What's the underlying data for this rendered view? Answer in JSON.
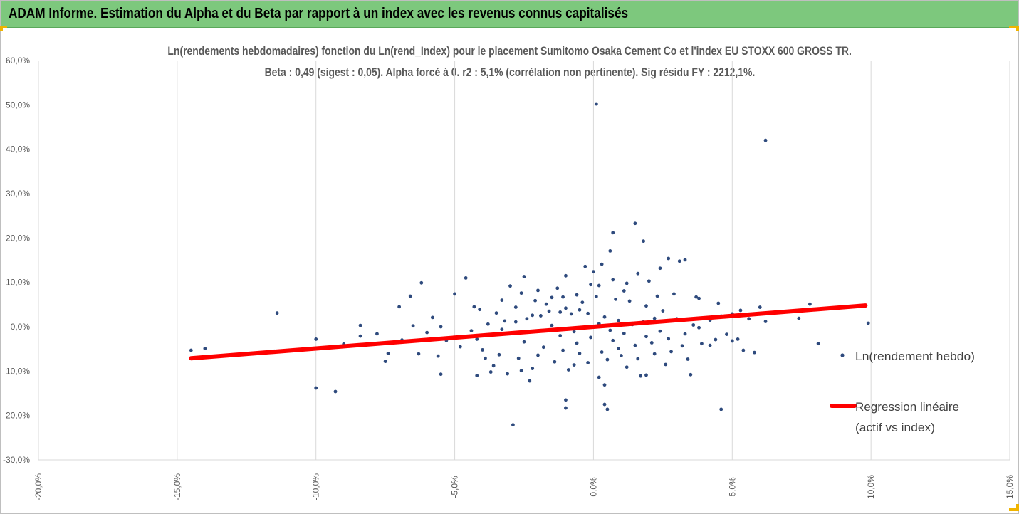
{
  "header": {
    "title": "ADAM Informe. Estimation du Alpha et du Beta par rapport à un index avec les revenus connus capitalisés"
  },
  "chart_data": {
    "type": "scatter",
    "title_line1": "Ln(rendements hebdomadaires) fonction du Ln(rend_Index) pour le placement Sumitomo Osaka Cement Co  et l'index EU STOXX 600 GROSS TR.",
    "title_line2": "Beta : 0,49 (sigest : 0,05). Alpha forcé à 0. r2 : 5,1% (corrélation non pertinente). Sig résidu FY : 2212,1%.",
    "xlim": [
      -20,
      15
    ],
    "ylim": [
      -30,
      60
    ],
    "x_ticks": [
      "-20,0%",
      "-15,0%",
      "-10,0%",
      "-5,0%",
      "0,0%",
      "5,0%",
      "10,0%",
      "15,0%"
    ],
    "y_ticks": [
      "60,0%",
      "50,0%",
      "40,0%",
      "30,0%",
      "20,0%",
      "10,0%",
      "0,0%",
      "-10,0%",
      "-20,0%",
      "-30,0%"
    ],
    "grid": "vertical",
    "legend_placement": "right",
    "colors": {
      "points": "#2e4a7d",
      "regression": "#ff0000",
      "grid": "#d9d9d9",
      "header": "#7dc87d"
    },
    "series": [
      {
        "name": "Ln(rendement hebdo)",
        "type": "scatter",
        "points": [
          [
            0.1,
            50.2
          ],
          [
            6.2,
            42.0
          ],
          [
            1.5,
            23.3
          ],
          [
            0.7,
            21.2
          ],
          [
            1.8,
            19.3
          ],
          [
            0.6,
            17.1
          ],
          [
            2.7,
            15.4
          ],
          [
            3.3,
            15.1
          ],
          [
            3.1,
            14.8
          ],
          [
            0.3,
            14.1
          ],
          [
            -0.3,
            13.6
          ],
          [
            2.4,
            13.2
          ],
          [
            -1.0,
            11.5
          ],
          [
            -2.5,
            11.3
          ],
          [
            -4.6,
            11.0
          ],
          [
            -6.2,
            9.9
          ],
          [
            -3.0,
            9.2
          ],
          [
            -5.0,
            7.4
          ],
          [
            -6.6,
            6.9
          ],
          [
            -4.3,
            4.5
          ],
          [
            -7.0,
            4.5
          ],
          [
            -6.5,
            0.2
          ],
          [
            -8.4,
            0.3
          ],
          [
            -11.4,
            3.1
          ],
          [
            -5.5,
            0.0
          ],
          [
            -6.9,
            -3.0
          ],
          [
            -7.4,
            -6.0
          ],
          [
            -7.5,
            -7.8
          ],
          [
            -6.3,
            -6.1
          ],
          [
            -5.6,
            -6.6
          ],
          [
            -5.5,
            -10.7
          ],
          [
            -4.2,
            -11.0
          ],
          [
            -3.7,
            -10.2
          ],
          [
            -3.1,
            -10.6
          ],
          [
            -2.6,
            -9.9
          ],
          [
            -2.3,
            -12.2
          ],
          [
            -3.9,
            -7.1
          ],
          [
            -14.5,
            -5.3
          ],
          [
            -14.0,
            -4.9
          ],
          [
            -11.5,
            -5.5
          ],
          [
            -10.0,
            -13.8
          ],
          [
            -9.3,
            -14.6
          ],
          [
            -10.0,
            -2.8
          ],
          [
            -8.4,
            -2.1
          ],
          [
            -2.9,
            -22.1
          ],
          [
            -1.0,
            -16.5
          ],
          [
            -1.0,
            -18.3
          ],
          [
            0.4,
            -17.5
          ],
          [
            0.5,
            -18.6
          ],
          [
            0.2,
            -11.4
          ],
          [
            0.4,
            -13.1
          ],
          [
            1.7,
            -11.1
          ],
          [
            1.9,
            -10.9
          ],
          [
            3.5,
            -10.8
          ],
          [
            4.6,
            -18.6
          ],
          [
            4.2,
            -4.2
          ],
          [
            5.0,
            -3.2
          ],
          [
            5.2,
            -2.8
          ],
          [
            5.4,
            -5.3
          ],
          [
            5.8,
            -5.8
          ],
          [
            6.2,
            1.2
          ],
          [
            6.0,
            4.4
          ],
          [
            5.0,
            2.9
          ],
          [
            7.4,
            1.9
          ],
          [
            7.8,
            5.1
          ],
          [
            8.1,
            -3.8
          ],
          [
            9.9,
            0.8
          ],
          [
            4.5,
            5.3
          ],
          [
            3.8,
            6.4
          ],
          [
            3.7,
            6.7
          ],
          [
            2.3,
            6.9
          ],
          [
            1.1,
            8.1
          ],
          [
            0.2,
            9.3
          ],
          [
            -0.1,
            9.5
          ],
          [
            -1.1,
            6.7
          ],
          [
            -1.5,
            6.6
          ],
          [
            -2.1,
            5.9
          ],
          [
            -3.5,
            3.1
          ],
          [
            -4.1,
            3.9
          ],
          [
            -2.8,
            4.4
          ],
          [
            -1.7,
            5.1
          ],
          [
            -0.6,
            7.2
          ],
          [
            0.7,
            10.6
          ],
          [
            1.2,
            9.8
          ],
          [
            2.9,
            7.4
          ],
          [
            -0.5,
            3.8
          ],
          [
            -0.8,
            2.9
          ],
          [
            -1.2,
            3.3
          ],
          [
            -1.9,
            2.5
          ],
          [
            -2.4,
            1.8
          ],
          [
            -3.2,
            1.3
          ],
          [
            -3.8,
            0.6
          ],
          [
            -4.4,
            -0.9
          ],
          [
            -4.9,
            -2.2
          ],
          [
            -5.3,
            -3.1
          ],
          [
            -4.8,
            -4.5
          ],
          [
            -4.0,
            -5.2
          ],
          [
            -3.4,
            -6.3
          ],
          [
            -2.7,
            -7.1
          ],
          [
            -2.0,
            -6.4
          ],
          [
            -1.4,
            -7.9
          ],
          [
            -0.7,
            -8.6
          ],
          [
            -0.2,
            -8.1
          ],
          [
            0.5,
            -7.4
          ],
          [
            1.0,
            -6.5
          ],
          [
            1.6,
            -7.2
          ],
          [
            2.2,
            -6.1
          ],
          [
            2.8,
            -5.6
          ],
          [
            3.2,
            -4.3
          ],
          [
            3.9,
            -3.8
          ],
          [
            4.4,
            -2.9
          ],
          [
            4.8,
            -1.7
          ],
          [
            3.6,
            0.4
          ],
          [
            3.0,
            1.8
          ],
          [
            2.5,
            3.6
          ],
          [
            1.9,
            4.7
          ],
          [
            1.3,
            5.8
          ],
          [
            0.8,
            6.2
          ],
          [
            0.1,
            6.8
          ],
          [
            -0.4,
            5.5
          ],
          [
            -1.0,
            4.2
          ],
          [
            -1.6,
            3.5
          ],
          [
            -2.2,
            2.6
          ],
          [
            -2.8,
            1.1
          ],
          [
            -3.3,
            -0.6
          ],
          [
            -3.7,
            -1.9
          ],
          [
            -4.2,
            -2.8
          ],
          [
            -2.5,
            -3.4
          ],
          [
            -1.8,
            -4.6
          ],
          [
            -1.1,
            -5.3
          ],
          [
            -0.5,
            -6.0
          ],
          [
            0.3,
            -5.7
          ],
          [
            0.9,
            -4.9
          ],
          [
            1.5,
            -4.2
          ],
          [
            2.1,
            -3.6
          ],
          [
            2.7,
            -2.7
          ],
          [
            3.3,
            -1.6
          ],
          [
            3.8,
            -0.2
          ],
          [
            4.2,
            1.5
          ],
          [
            4.6,
            2.4
          ],
          [
            5.3,
            3.7
          ],
          [
            5.6,
            1.8
          ],
          [
            7.0,
            3.4
          ],
          [
            8.5,
            4.2
          ],
          [
            -6.0,
            -1.3
          ],
          [
            -5.8,
            2.1
          ],
          [
            -7.8,
            -1.6
          ],
          [
            -9.0,
            -3.9
          ],
          [
            -3.6,
            -8.8
          ],
          [
            -2.2,
            -9.4
          ],
          [
            -0.9,
            -9.7
          ],
          [
            1.2,
            -9.1
          ],
          [
            2.6,
            -8.5
          ],
          [
            3.4,
            -7.3
          ],
          [
            0.0,
            12.4
          ],
          [
            -1.3,
            8.7
          ],
          [
            1.6,
            12.0
          ],
          [
            2.0,
            10.3
          ],
          [
            -2.0,
            8.2
          ],
          [
            -2.6,
            7.6
          ],
          [
            -3.3,
            6.0
          ],
          [
            -0.2,
            3.0
          ],
          [
            0.4,
            2.2
          ],
          [
            0.9,
            1.4
          ],
          [
            0.2,
            0.7
          ],
          [
            -0.3,
            -0.2
          ],
          [
            0.6,
            -0.8
          ],
          [
            1.1,
            -1.5
          ],
          [
            -0.7,
            -1.1
          ],
          [
            -1.2,
            -2.0
          ],
          [
            1.4,
            0.5
          ],
          [
            1.8,
            1.1
          ],
          [
            2.2,
            1.9
          ],
          [
            -1.5,
            0.3
          ],
          [
            -0.1,
            -2.4
          ],
          [
            0.7,
            -3.1
          ],
          [
            -0.6,
            -3.7
          ],
          [
            1.9,
            -2.2
          ],
          [
            2.4,
            -1.0
          ],
          [
            -2.0,
            -0.9
          ]
        ]
      },
      {
        "name": "Regression linéaire",
        "name_line2": "(actif vs index)",
        "type": "line",
        "x": [
          -14.5,
          9.8
        ],
        "y": [
          -7.1,
          4.8
        ]
      }
    ]
  }
}
